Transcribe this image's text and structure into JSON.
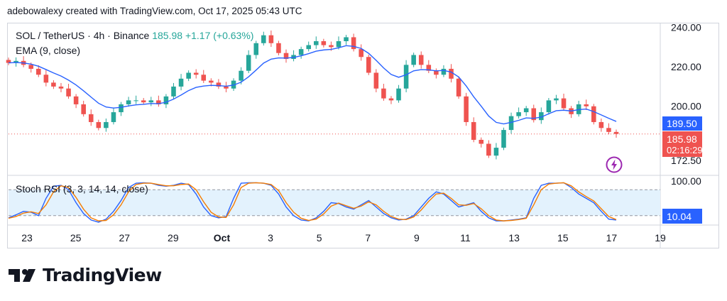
{
  "credit": "adebowalexy created with TradingView.com, Oct 17, 2025 05:43 UTC",
  "legend": {
    "symbol": "SOL / TetherUS · 4h · Binance",
    "last": "185.98",
    "change": "+1.17 (+0.63%)",
    "ema_label": "EMA (9, close)",
    "stoch_label": "Stoch RSI (3, 3, 14, 14, close)"
  },
  "tags": {
    "ema_value": "189.50",
    "price_value": "185.98",
    "countdown": "02:16:29",
    "stoch_value": "10.04"
  },
  "logo": {
    "text": "TradingView"
  },
  "colors": {
    "up": "#26a69a",
    "down": "#ef5350",
    "ema": "#2962ff",
    "k": "#2962ff",
    "d": "#f57c00",
    "band": "#e3f2fd",
    "purple": "#9c27b0"
  },
  "chart_data": [
    {
      "type": "candlestick",
      "symbol": "SOL / TetherUS",
      "interval": "4h",
      "exchange": "Binance",
      "ylim": [
        165,
        242
      ],
      "y_ticks": [
        240,
        220,
        200,
        172.5
      ],
      "x_ticks": [
        "23",
        "25",
        "27",
        "29",
        "Oct",
        "3",
        "5",
        "7",
        "9",
        "11",
        "13",
        "15",
        "17",
        "19"
      ],
      "close_series": [
        222,
        223,
        221,
        219,
        216,
        212,
        210,
        209,
        205,
        201,
        196,
        192,
        189,
        192,
        197,
        201,
        203,
        203,
        202,
        203,
        201,
        205,
        210,
        214,
        217,
        216,
        213,
        212,
        210,
        209,
        213,
        218,
        226,
        232,
        236,
        232,
        227,
        224,
        226,
        229,
        231,
        233,
        231,
        230,
        233,
        235,
        229,
        225,
        217,
        209,
        204,
        203,
        209,
        221,
        226,
        221,
        218,
        216,
        219,
        214,
        205,
        192,
        183,
        181,
        175,
        179,
        188,
        195,
        197,
        199,
        193,
        197,
        203,
        204,
        199,
        196,
        201,
        200,
        192,
        189,
        187,
        185.98
      ],
      "ema9_last": 189.5,
      "last": 185.98,
      "low_spike": 175
    },
    {
      "type": "line",
      "title": "Stoch RSI (3, 3, 14, 14, close)",
      "ylim": [
        0,
        100
      ],
      "y_ticks": [
        100
      ],
      "bands": [
        20,
        80
      ],
      "series": [
        {
          "name": "K",
          "values": [
            15,
            22,
            30,
            28,
            20,
            60,
            88,
            90,
            80,
            50,
            25,
            10,
            5,
            12,
            30,
            55,
            85,
            95,
            96,
            95,
            90,
            88,
            90,
            95,
            92,
            70,
            40,
            20,
            15,
            18,
            60,
            95,
            96,
            96,
            95,
            90,
            70,
            40,
            20,
            10,
            8,
            15,
            30,
            50,
            48,
            40,
            35,
            45,
            55,
            40,
            25,
            15,
            10,
            12,
            20,
            40,
            60,
            75,
            70,
            55,
            40,
            45,
            50,
            30,
            15,
            8,
            8,
            10,
            12,
            15,
            60,
            90,
            95,
            95,
            96,
            85,
            70,
            60,
            50,
            30,
            12,
            10.04
          ]
        },
        {
          "name": "D",
          "values": [
            14,
            18,
            26,
            29,
            25,
            45,
            75,
            89,
            85,
            62,
            35,
            15,
            8,
            9,
            22,
            45,
            75,
            92,
            95,
            95,
            92,
            89,
            89,
            92,
            93,
            80,
            52,
            28,
            17,
            16,
            45,
            85,
            95,
            96,
            95,
            92,
            78,
            50,
            28,
            14,
            9,
            12,
            24,
            42,
            49,
            43,
            37,
            42,
            52,
            45,
            30,
            18,
            12,
            11,
            17,
            33,
            53,
            70,
            72,
            60,
            45,
            44,
            48,
            36,
            20,
            10,
            8,
            9,
            11,
            14,
            45,
            80,
            93,
            95,
            96,
            89,
            75,
            64,
            54,
            36,
            18,
            11
          ]
        }
      ],
      "last": 10.04
    }
  ]
}
